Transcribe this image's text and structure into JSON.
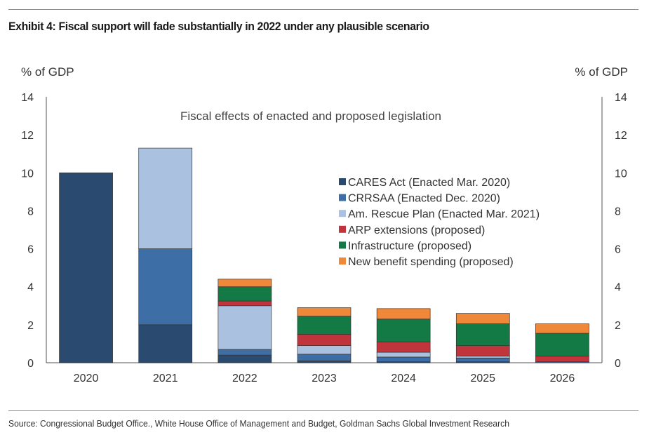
{
  "header": {
    "title": "Exhibit 4: Fiscal support will fade substantially in 2022 under any plausible scenario"
  },
  "footer": {
    "source": "Source: Congressional Budget Office., White House Office of Management and Budget, Goldman Sachs Global Investment Research"
  },
  "chart_data": {
    "type": "bar",
    "stacked": true,
    "title": "Fiscal effects of enacted and proposed legislation",
    "ylabel_left": "% of GDP",
    "ylabel_right": "% of GDP",
    "ylim": [
      0,
      14
    ],
    "yticks": [
      "0",
      "2",
      "4",
      "6",
      "8",
      "10",
      "12",
      "14"
    ],
    "categories": [
      "2020",
      "2021",
      "2022",
      "2023",
      "2024",
      "2025",
      "2026"
    ],
    "legend_position": "right-center",
    "series": [
      {
        "name": "CARES Act (Enacted Mar. 2020)",
        "color": "#2b4a70",
        "values": [
          10.0,
          2.0,
          0.4,
          0.1,
          0.05,
          0.05,
          0.0
        ]
      },
      {
        "name": "CRRSAA (Enacted Dec. 2020)",
        "color": "#3d6ea5",
        "values": [
          0.0,
          4.0,
          0.3,
          0.35,
          0.25,
          0.2,
          0.05
        ]
      },
      {
        "name": "Am. Rescue Plan (Enacted Mar. 2021)",
        "color": "#aac2e0",
        "values": [
          0.0,
          5.3,
          2.3,
          0.45,
          0.25,
          0.1,
          0.0
        ]
      },
      {
        "name": "ARP extensions (proposed)",
        "color": "#c0353c",
        "values": [
          0.0,
          0.0,
          0.25,
          0.6,
          0.55,
          0.55,
          0.3
        ]
      },
      {
        "name": "Infrastructure (proposed)",
        "color": "#137a45",
        "values": [
          0.0,
          0.0,
          0.75,
          0.95,
          1.2,
          1.15,
          1.2
        ]
      },
      {
        "name": "New benefit spending (proposed)",
        "color": "#f0883a",
        "values": [
          0.0,
          0.0,
          0.4,
          0.45,
          0.55,
          0.55,
          0.5
        ]
      }
    ]
  }
}
